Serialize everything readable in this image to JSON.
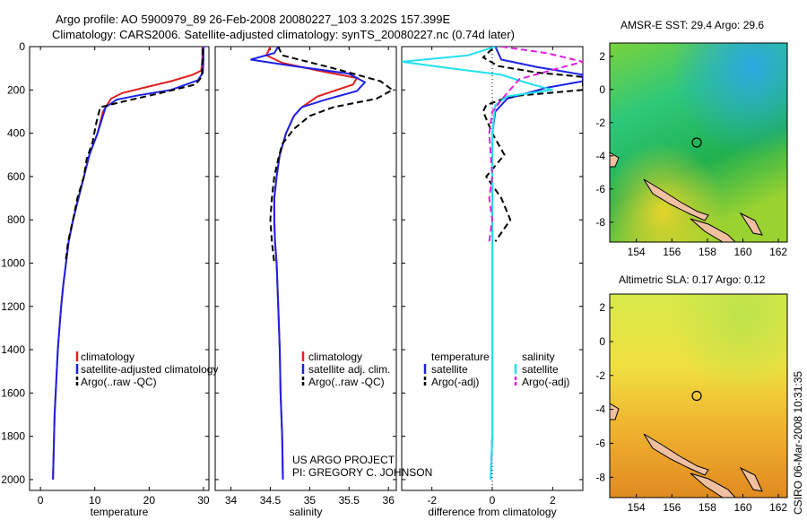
{
  "header": {
    "line1": "Argo profile: AO 5900979_89 26-Feb-2008 20080227_103 3.202S 157.399E",
    "line2": "Climatology: CARS2006. Satellite-adjusted climatology: synTS_20080227.nc (0.74d later)"
  },
  "side_label": "CSIRO 06-Mar-2008 10:31:35",
  "credit": {
    "line1": "US ARGO PROJECT",
    "line2": "PI: GREGORY C. JOHNSON"
  },
  "colors": {
    "climatology": "#e02020",
    "satellite": "#1c22e6",
    "argo": "#000000",
    "sat_salinity": "#22e0f0",
    "argo_salinity": "#e020e0"
  },
  "chart_data": [
    {
      "type": "line",
      "xlabel": "temperature",
      "ylabel": "",
      "xlim": [
        -2,
        31
      ],
      "ylim": [
        0,
        2050
      ],
      "xticks": [
        0,
        10,
        20,
        30
      ],
      "yticks": [
        0,
        200,
        400,
        600,
        800,
        1000,
        1200,
        1400,
        1600,
        1800,
        2000
      ],
      "legend": {
        "placement": "lower-left",
        "entries": [
          "climatology",
          "satellite-adjusted climatology",
          "Argo(..raw -QC)"
        ]
      },
      "series": [
        {
          "name": "climatology",
          "style": "solid",
          "color": "#e02020",
          "points": [
            [
              29.8,
              0
            ],
            [
              29.8,
              60
            ],
            [
              29.6,
              110
            ],
            [
              28,
              130
            ],
            [
              24,
              160
            ],
            [
              19,
              190
            ],
            [
              15,
              215
            ],
            [
              13,
              240
            ],
            [
              11.5,
              300
            ],
            [
              10.5,
              400
            ],
            [
              9,
              500
            ],
            [
              8,
              600
            ],
            [
              7,
              700
            ],
            [
              6,
              800
            ],
            [
              5.2,
              900
            ],
            [
              4.7,
              1000
            ],
            [
              4.2,
              1100
            ],
            [
              3.8,
              1200
            ],
            [
              3.5,
              1300
            ],
            [
              3.2,
              1400
            ],
            [
              3,
              1500
            ],
            [
              2.8,
              1600
            ],
            [
              2.6,
              1700
            ],
            [
              2.5,
              1800
            ],
            [
              2.4,
              1900
            ],
            [
              2.3,
              2000
            ]
          ]
        },
        {
          "name": "satellite-adjusted climatology",
          "style": "solid",
          "color": "#1c22e6",
          "points": [
            [
              30,
              0
            ],
            [
              30,
              60
            ],
            [
              29.9,
              120
            ],
            [
              29,
              155
            ],
            [
              24,
              200
            ],
            [
              18,
              225
            ],
            [
              14,
              245
            ],
            [
              12,
              280
            ],
            [
              10.5,
              400
            ],
            [
              9,
              500
            ],
            [
              8,
              600
            ],
            [
              7,
              700
            ],
            [
              6,
              800
            ],
            [
              5.2,
              900
            ],
            [
              4.7,
              1000
            ],
            [
              4.2,
              1100
            ],
            [
              3.8,
              1200
            ],
            [
              3.5,
              1300
            ],
            [
              3.2,
              1400
            ],
            [
              3,
              1500
            ],
            [
              2.8,
              1600
            ],
            [
              2.6,
              1700
            ],
            [
              2.5,
              1800
            ],
            [
              2.4,
              1900
            ],
            [
              2.3,
              2000
            ]
          ]
        },
        {
          "name": "Argo(..raw -QC)",
          "style": "dashed",
          "color": "#000000",
          "points": [
            [
              29.9,
              10
            ],
            [
              29.8,
              80
            ],
            [
              29.7,
              140
            ],
            [
              28.5,
              175
            ],
            [
              22,
              215
            ],
            [
              15,
              255
            ],
            [
              11,
              280
            ],
            [
              10.3,
              350
            ],
            [
              9.6,
              440
            ],
            [
              8.5,
              520
            ],
            [
              8,
              600
            ],
            [
              6.8,
              700
            ],
            [
              6,
              800
            ],
            [
              5.1,
              900
            ],
            [
              4.6,
              1000
            ]
          ]
        }
      ]
    },
    {
      "type": "line",
      "xlabel": "salinity",
      "xlim": [
        33.8,
        36.1
      ],
      "ylim": [
        0,
        2050
      ],
      "xticks": [
        34,
        34.5,
        35,
        35.5,
        36
      ],
      "legend": {
        "placement": "lower-left",
        "entries": [
          "climatology",
          "satellite adj. clim.",
          "Argo(..raw -QC)"
        ]
      },
      "series": [
        {
          "name": "climatology",
          "style": "solid",
          "color": "#e02020",
          "points": [
            [
              34.5,
              0
            ],
            [
              34.45,
              40
            ],
            [
              34.65,
              75
            ],
            [
              35.1,
              110
            ],
            [
              35.6,
              145
            ],
            [
              35.55,
              175
            ],
            [
              35.1,
              230
            ],
            [
              34.9,
              280
            ],
            [
              34.8,
              320
            ],
            [
              34.7,
              400
            ],
            [
              34.62,
              500
            ],
            [
              34.58,
              600
            ],
            [
              34.55,
              700
            ],
            [
              34.55,
              800
            ],
            [
              34.56,
              900
            ],
            [
              34.58,
              1000
            ],
            [
              34.6,
              1200
            ],
            [
              34.62,
              1400
            ],
            [
              34.63,
              1600
            ],
            [
              34.65,
              1800
            ],
            [
              34.66,
              2000
            ]
          ]
        },
        {
          "name": "satellite adj. clim.",
          "style": "solid",
          "color": "#1c22e6",
          "points": [
            [
              34.6,
              0
            ],
            [
              34.55,
              30
            ],
            [
              34.25,
              60
            ],
            [
              34.8,
              90
            ],
            [
              35.5,
              125
            ],
            [
              35.7,
              165
            ],
            [
              35.6,
              205
            ],
            [
              35.2,
              245
            ],
            [
              34.9,
              280
            ],
            [
              34.8,
              320
            ],
            [
              34.7,
              400
            ],
            [
              34.62,
              500
            ],
            [
              34.58,
              600
            ],
            [
              34.55,
              700
            ],
            [
              34.55,
              800
            ],
            [
              34.56,
              900
            ],
            [
              34.58,
              1000
            ],
            [
              34.6,
              1200
            ],
            [
              34.62,
              1400
            ],
            [
              34.63,
              1600
            ],
            [
              34.65,
              1800
            ],
            [
              34.66,
              2000
            ]
          ]
        },
        {
          "name": "Argo(..raw -QC)",
          "style": "dashed",
          "color": "#000000",
          "points": [
            [
              34.6,
              0
            ],
            [
              34.65,
              40
            ],
            [
              35.3,
              100
            ],
            [
              35.9,
              160
            ],
            [
              36.05,
              200
            ],
            [
              35.85,
              240
            ],
            [
              35.3,
              280
            ],
            [
              35,
              320
            ],
            [
              34.8,
              380
            ],
            [
              34.65,
              450
            ],
            [
              34.6,
              520
            ],
            [
              34.55,
              600
            ],
            [
              34.52,
              700
            ],
            [
              34.5,
              800
            ],
            [
              34.52,
              900
            ],
            [
              34.55,
              1000
            ]
          ]
        }
      ]
    },
    {
      "type": "line",
      "xlabel": "difference from climatology",
      "xlim": [
        -3,
        3
      ],
      "ylim": [
        0,
        2050
      ],
      "xticks": [
        -2,
        0,
        2
      ],
      "legend": {
        "placement": "lower-center",
        "groups": [
          {
            "title": "temperature",
            "entries": [
              "satellite",
              "Argo(-adj)"
            ]
          },
          {
            "title": "salinity",
            "entries": [
              "satellite",
              "Argo(-adj)"
            ]
          }
        ]
      },
      "series": [
        {
          "name": "temperature satellite",
          "style": "solid",
          "color": "#1c22e6",
          "points": [
            [
              0.1,
              0
            ],
            [
              0.3,
              60
            ],
            [
              1.5,
              95
            ],
            [
              3,
              130
            ],
            [
              3,
              160
            ],
            [
              1.8,
              190
            ],
            [
              0.5,
              240
            ],
            [
              0.1,
              300
            ],
            [
              0,
              400
            ],
            [
              0,
              600
            ],
            [
              0,
              800
            ],
            [
              0,
              1000
            ],
            [
              0,
              1200
            ],
            [
              0,
              1400
            ],
            [
              0,
              1600
            ],
            [
              0,
              1800
            ],
            [
              -0.05,
              2000
            ]
          ]
        },
        {
          "name": "temperature Argo(-adj)",
          "style": "dashed",
          "color": "#000000",
          "points": [
            [
              0,
              10
            ],
            [
              -0.3,
              50
            ],
            [
              0.2,
              90
            ],
            [
              1.5,
              120
            ],
            [
              3,
              140
            ],
            [
              3,
              200
            ],
            [
              0.6,
              230
            ],
            [
              -0.2,
              270
            ],
            [
              -0.3,
              300
            ],
            [
              0,
              400
            ],
            [
              0.4,
              500
            ],
            [
              -0.2,
              600
            ],
            [
              0.3,
              700
            ],
            [
              0.6,
              800
            ],
            [
              0.1,
              900
            ]
          ]
        },
        {
          "name": "salinity satellite",
          "style": "solid",
          "color": "#22e0f0",
          "points": [
            [
              0.1,
              0
            ],
            [
              -0.8,
              40
            ],
            [
              -3,
              70
            ],
            [
              -1.4,
              100
            ],
            [
              0.3,
              130
            ],
            [
              1.2,
              170
            ],
            [
              2,
              200
            ],
            [
              0.5,
              230
            ],
            [
              0.1,
              270
            ],
            [
              0,
              400
            ],
            [
              0,
              600
            ],
            [
              0,
              800
            ],
            [
              0,
              1000
            ],
            [
              0,
              1200
            ],
            [
              0,
              1400
            ],
            [
              0,
              1600
            ],
            [
              0,
              1800
            ],
            [
              -0.05,
              2000
            ]
          ]
        },
        {
          "name": "salinity Argo(-adj)",
          "style": "dashed",
          "color": "#e020e0",
          "points": [
            [
              0.3,
              0
            ],
            [
              1.8,
              30
            ],
            [
              3,
              70
            ],
            [
              2.2,
              100
            ],
            [
              0.9,
              150
            ],
            [
              0.4,
              230
            ],
            [
              0,
              300
            ],
            [
              -0.1,
              400
            ],
            [
              0,
              600
            ],
            [
              -0.1,
              700
            ],
            [
              0,
              800
            ],
            [
              -0.1,
              900
            ]
          ]
        }
      ]
    },
    {
      "type": "heatmap",
      "title": "AMSR-E SST: 29.4  Argo: 29.6",
      "xlim": [
        152.5,
        162.5
      ],
      "ylim": [
        -9.2,
        2.8
      ],
      "xticks": [
        154,
        156,
        158,
        160,
        162
      ],
      "yticks": [
        -8,
        -6,
        -4,
        -2,
        0,
        2
      ],
      "float_position": [
        157.4,
        -3.2
      ]
    },
    {
      "type": "heatmap",
      "title": "Altimetric SLA: 0.17  Argo: 0.12",
      "xlim": [
        152.5,
        162.5
      ],
      "ylim": [
        -9.2,
        2.8
      ],
      "xticks": [
        154,
        156,
        158,
        160,
        162
      ],
      "yticks": [
        -8,
        -6,
        -4,
        -2,
        0,
        2
      ],
      "float_position": [
        157.4,
        -3.2
      ]
    }
  ]
}
